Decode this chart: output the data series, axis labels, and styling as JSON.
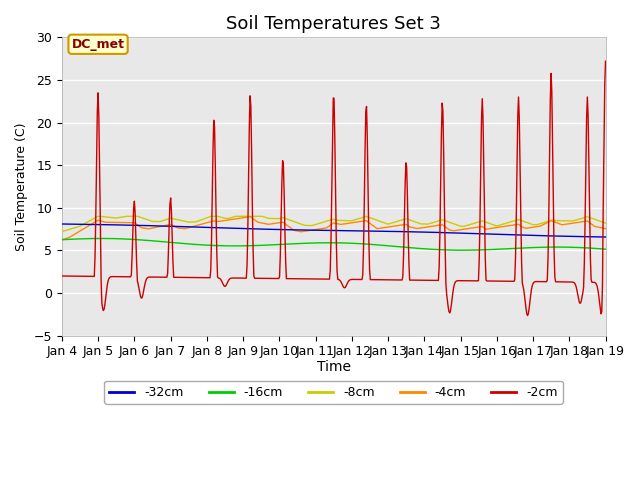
{
  "title": "Soil Temperatures Set 3",
  "xlabel": "Time",
  "ylabel": "Soil Temperature (C)",
  "ylim": [
    -5,
    30
  ],
  "legend_label": "DC_met",
  "series_labels": [
    "-32cm",
    "-16cm",
    "-8cm",
    "-4cm",
    "-2cm"
  ],
  "series_colors": [
    "#0000cc",
    "#00cc00",
    "#cccc00",
    "#ff8800",
    "#cc0000"
  ],
  "tick_labels": [
    "Jan 4",
    "Jan 5",
    "Jan 6",
    "Jan 7",
    "Jan 8",
    "Jan 9",
    "Jan 10",
    "Jan 11",
    "Jan 12",
    "Jan 13",
    "Jan 14",
    "Jan 15",
    "Jan 16",
    "Jan 17",
    "Jan 18",
    "Jan 19"
  ],
  "plot_bg": "#e8e8e8",
  "title_fontsize": 13,
  "annotation_box_color": "#ffffcc",
  "annotation_box_edge": "#cc9900",
  "spike_times": [
    1.0,
    2.0,
    3.0,
    4.2,
    5.2,
    6.1,
    7.5,
    8.4,
    9.5,
    10.5,
    11.6,
    12.6,
    13.5,
    14.5,
    15.0
  ],
  "spike_heights": [
    23.5,
    10.8,
    11.2,
    20.5,
    23.3,
    15.8,
    23.5,
    22.2,
    15.5,
    22.5,
    22.8,
    23.0,
    25.8,
    23.0,
    27.2
  ],
  "dip_times": [
    1.15,
    2.2,
    4.5,
    7.8,
    10.7,
    12.85,
    14.3,
    14.9
  ],
  "dip_values": [
    -4.0,
    -2.5,
    -1.0,
    -1.0,
    -3.8,
    -4.0,
    -2.5,
    -4.0
  ]
}
